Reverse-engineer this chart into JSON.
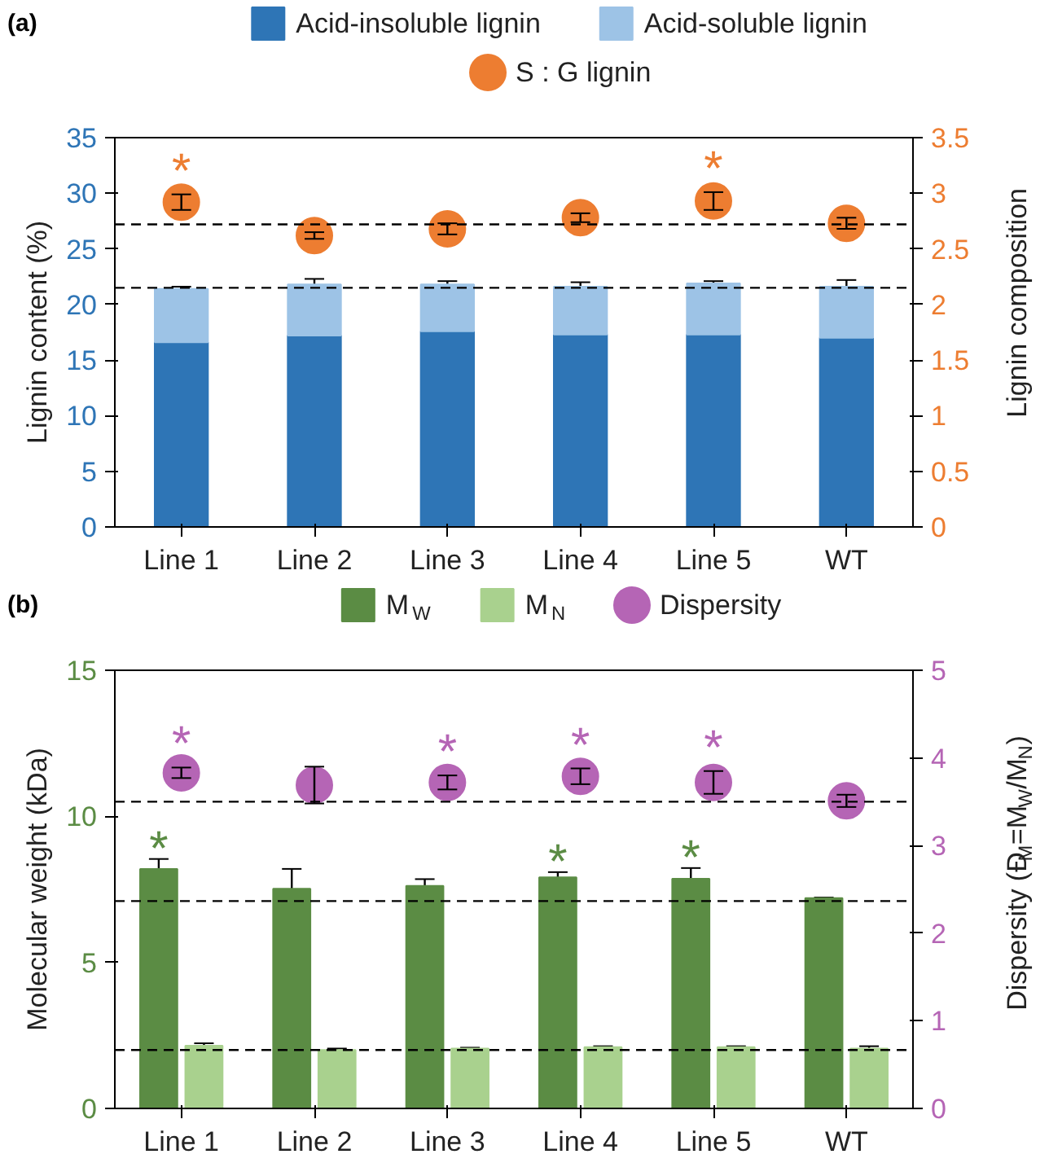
{
  "chart_data": [
    {
      "type": "bar",
      "title": "(a)",
      "stacked": true,
      "legend": "top",
      "categories": [
        "Line 1",
        "Line 2",
        "Line 3",
        "Line 4",
        "Line 5",
        "WT"
      ],
      "ylabel": "Lignin content (%)",
      "y2label": "Lignin composition",
      "ylim": [
        0,
        35
      ],
      "yticks": [
        0,
        5,
        10,
        15,
        20,
        25,
        30,
        35
      ],
      "y2lim": [
        0,
        3.5
      ],
      "y2ticks": [
        0,
        0.5,
        1,
        1.5,
        2,
        2.5,
        3,
        3.5
      ],
      "series": [
        {
          "name": "Acid-insoluble lignin",
          "color": "#2e75b6",
          "values": [
            16.6,
            17.2,
            17.6,
            17.3,
            17.3,
            17.0
          ]
        },
        {
          "name": "Acid-soluble lignin",
          "color": "#9dc3e6",
          "values": [
            4.8,
            4.6,
            4.2,
            4.3,
            4.6,
            4.6
          ],
          "errors": [
            0.2,
            0.5,
            0.3,
            0.4,
            0.2,
            0.6
          ]
        },
        {
          "name": "S : G lignin",
          "type": "scatter",
          "axis": "y2",
          "marker": "circle",
          "color": "#ed7d31",
          "values": [
            2.92,
            2.62,
            2.68,
            2.78,
            2.93,
            2.73
          ],
          "errors": [
            0.07,
            0.03,
            0.05,
            0.04,
            0.08,
            0.05
          ],
          "value_labels": [
            "*",
            null,
            null,
            null,
            "*",
            null
          ]
        }
      ],
      "ref_lines": [
        {
          "axis": "y",
          "value": 21.5,
          "line_style": "dashed"
        },
        {
          "axis": "y2",
          "value": 2.72,
          "line_style": "dashed"
        }
      ]
    },
    {
      "type": "bar",
      "title": "(b)",
      "legend": "top",
      "categories": [
        "Line 1",
        "Line 2",
        "Line 3",
        "Line 4",
        "Line 5",
        "WT"
      ],
      "ylabel": "Molecular weight (kDa)",
      "y2label": "Dispersity (Đ$_{M}$=M$_{W}$/M$_{N}$)",
      "ylim": [
        0,
        15
      ],
      "yticks": [
        0,
        5,
        10,
        15
      ],
      "y2lim": [
        0,
        5
      ],
      "y2ticks": [
        0,
        1,
        2,
        3,
        4,
        5
      ],
      "series": [
        {
          "name": "M$_{W}$",
          "color": "#5b8c44",
          "values": [
            8.2,
            7.52,
            7.62,
            7.91,
            7.86,
            7.2
          ],
          "errors": [
            0.34,
            0.68,
            0.23,
            0.18,
            0.37,
            0.02
          ],
          "value_labels": [
            "*",
            null,
            null,
            "*",
            "*",
            null
          ]
        },
        {
          "name": "M$_{N}$",
          "color": "#a9d18e",
          "values": [
            2.15,
            2.0,
            2.05,
            2.1,
            2.1,
            2.05
          ],
          "errors": [
            0.08,
            0.05,
            0.03,
            0.03,
            0.03,
            0.08
          ]
        },
        {
          "name": "Dispersity",
          "type": "scatter",
          "axis": "y2",
          "marker": "circle",
          "color": "#b565b5",
          "values": [
            3.83,
            3.69,
            3.72,
            3.79,
            3.72,
            3.51
          ],
          "errors": [
            0.06,
            0.21,
            0.08,
            0.09,
            0.13,
            0.07
          ],
          "value_labels": [
            "*",
            null,
            "*",
            "*",
            "*",
            null
          ]
        }
      ],
      "ref_lines": [
        {
          "axis": "y2",
          "value": 3.5,
          "line_style": "dashed"
        },
        {
          "axis": "y",
          "value": 7.1,
          "line_style": "dashed"
        },
        {
          "axis": "y",
          "value": 2.0,
          "line_style": "dashed"
        }
      ]
    }
  ]
}
